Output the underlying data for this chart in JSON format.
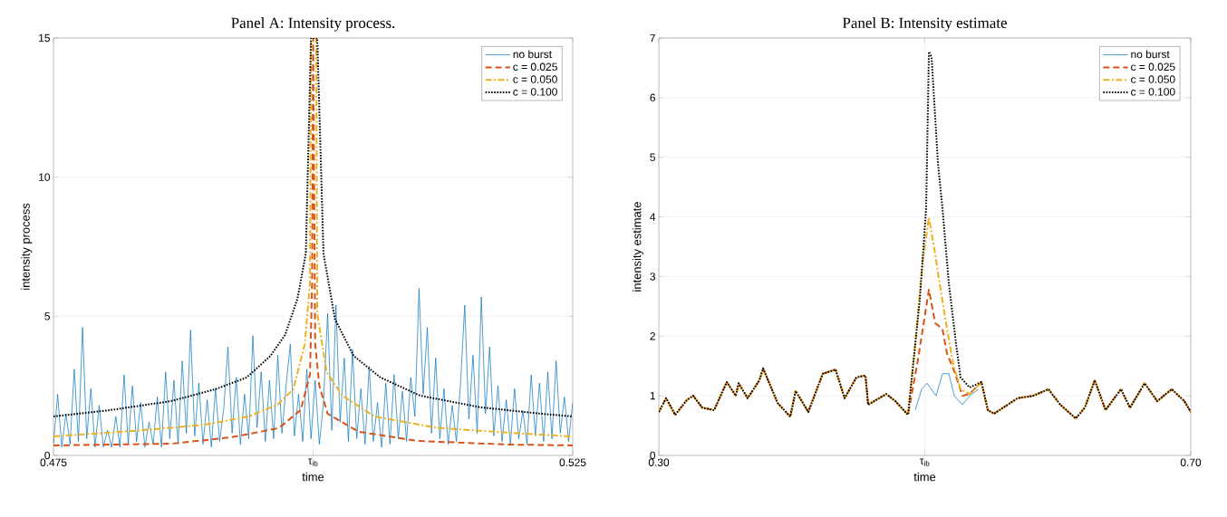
{
  "chart_data": [
    {
      "type": "line",
      "title": "Panel A: Intensity process.",
      "xlabel": "time",
      "ylabel": "intensity process",
      "xlim": [
        0.475,
        0.525
      ],
      "ylim": [
        0,
        15
      ],
      "xticks": [
        0.475,
        {
          "value": 0.5,
          "label": "τ$_{ib}$"
        },
        0.525
      ],
      "yticks": [
        0,
        5,
        10,
        15
      ],
      "grid": true,
      "legend": "top right",
      "series": [
        {
          "name": "no burst",
          "color": "#0072bd",
          "line_style": "solid",
          "x": [
            0.475,
            0.4754,
            0.4758,
            0.4762,
            0.4766,
            0.477,
            0.4774,
            0.4778,
            0.4782,
            0.4786,
            0.479,
            0.4794,
            0.4798,
            0.4802,
            0.4806,
            0.481,
            0.4814,
            0.4818,
            0.4822,
            0.4826,
            0.483,
            0.4834,
            0.4838,
            0.4842,
            0.4846,
            0.485,
            0.4854,
            0.4858,
            0.4862,
            0.4866,
            0.487,
            0.4874,
            0.4878,
            0.4882,
            0.4886,
            0.489,
            0.4894,
            0.4898,
            0.4902,
            0.4906,
            0.491,
            0.4914,
            0.4918,
            0.4922,
            0.4926,
            0.493,
            0.4934,
            0.4938,
            0.4942,
            0.4946,
            0.495,
            0.4954,
            0.4958,
            0.4962,
            0.4966,
            0.497,
            0.4974,
            0.4978,
            0.4982,
            0.4986,
            0.499,
            0.4994,
            0.4998,
            0.5002,
            0.5006,
            0.501,
            0.5014,
            0.5018,
            0.5022,
            0.5026,
            0.503,
            0.5034,
            0.5038,
            0.5042,
            0.5046,
            0.505,
            0.5054,
            0.5058,
            0.5062,
            0.5066,
            0.507,
            0.5074,
            0.5078,
            0.5082,
            0.5086,
            0.509,
            0.5094,
            0.5098,
            0.5102,
            0.5106,
            0.511,
            0.5114,
            0.5118,
            0.5122,
            0.5126,
            0.513,
            0.5134,
            0.5138,
            0.5142,
            0.5146,
            0.515,
            0.5154,
            0.5158,
            0.5162,
            0.5166,
            0.517,
            0.5174,
            0.5178,
            0.5182,
            0.5186,
            0.519,
            0.5194,
            0.5198,
            0.5202,
            0.5206,
            0.521,
            0.5214,
            0.5218,
            0.5222,
            0.5226,
            0.523,
            0.5234,
            0.5238,
            0.5242,
            0.5246,
            0.525
          ],
          "values": [
            0.4,
            2.2,
            0.3,
            1.5,
            0.4,
            3.1,
            0.5,
            4.6,
            0.6,
            2.4,
            0.3,
            1.8,
            0.3,
            0.9,
            0.3,
            1.4,
            0.3,
            2.9,
            0.4,
            2.5,
            0.5,
            1.9,
            0.3,
            1.2,
            0.4,
            2.1,
            0.3,
            3.0,
            0.6,
            2.7,
            0.4,
            3.4,
            0.8,
            4.5,
            0.7,
            2.6,
            0.4,
            2.0,
            0.3,
            2.4,
            0.5,
            1.7,
            3.9,
            0.8,
            2.8,
            0.4,
            2.2,
            0.6,
            4.3,
            1.0,
            3.0,
            0.5,
            2.7,
            0.6,
            3.6,
            0.8,
            2.5,
            4.0,
            0.7,
            2.2,
            0.5,
            3.1,
            0.6,
            2.7,
            0.4,
            1.9,
            5.1,
            0.9,
            5.4,
            1.2,
            3.5,
            0.5,
            3.8,
            0.6,
            2.4,
            0.4,
            3.2,
            0.5,
            1.9,
            0.3,
            2.6,
            0.4,
            2.9,
            0.6,
            2.3,
            0.5,
            2.8,
            1.4,
            6.0,
            2.2,
            4.6,
            0.8,
            3.5,
            0.6,
            2.4,
            0.4,
            1.8,
            0.5,
            2.6,
            5.4,
            1.3,
            3.6,
            0.8,
            5.7,
            1.5,
            3.9,
            0.7,
            2.5,
            0.5,
            2.0,
            0.4,
            2.4,
            0.6,
            1.6,
            0.4,
            2.9,
            0.7,
            2.6,
            0.5,
            3.0,
            0.6,
            3.4,
            0.8,
            2.1,
            0.5,
            1.9
          ]
        },
        {
          "name": "c = 0.025",
          "color": "#d95319",
          "line_style": "dashed",
          "x": [
            0.475,
            0.4863,
            0.4921,
            0.4967,
            0.4988,
            0.4997,
            0.4999,
            0.5,
            0.5002,
            0.5006,
            0.5014,
            0.5044,
            0.5101,
            0.5188,
            0.525
          ],
          "values": [
            0.36,
            0.42,
            0.65,
            0.98,
            1.63,
            2.9,
            6.2,
            15,
            4.0,
            2.5,
            1.5,
            0.85,
            0.52,
            0.39,
            0.36
          ]
        },
        {
          "name": "c = 0.050",
          "color": "#edb120",
          "line_style": "dashdot",
          "x": [
            0.475,
            0.4837,
            0.4895,
            0.4938,
            0.4966,
            0.4981,
            0.4992,
            0.4997,
            0.4998,
            0.5003,
            0.5004,
            0.5013,
            0.5028,
            0.5059,
            0.5118,
            0.519,
            0.525
          ],
          "values": [
            0.68,
            0.91,
            1.1,
            1.4,
            1.83,
            2.38,
            4.0,
            6.2,
            15,
            15,
            5.1,
            3.0,
            2.15,
            1.4,
            1.0,
            0.81,
            0.68
          ]
        },
        {
          "name": "c = 0.100",
          "color": "#000000",
          "line_style": "dotted",
          "x": [
            0.475,
            0.4805,
            0.4863,
            0.4906,
            0.4936,
            0.4959,
            0.4973,
            0.4985,
            0.4993,
            0.4998,
            0.5004,
            0.501,
            0.5021,
            0.5039,
            0.5065,
            0.5103,
            0.5161,
            0.5219,
            0.525
          ],
          "values": [
            1.4,
            1.63,
            1.95,
            2.38,
            2.8,
            3.58,
            4.33,
            5.64,
            7.26,
            15,
            15,
            7.26,
            4.9,
            3.58,
            2.8,
            2.15,
            1.73,
            1.5,
            1.4
          ]
        }
      ]
    },
    {
      "type": "line",
      "title": "Panel B: Intensity estimate",
      "xlabel": "time",
      "ylabel": "intensity estimate",
      "xlim": [
        0.3,
        0.7
      ],
      "ylim": [
        0,
        7
      ],
      "xticks": [
        {
          "value": 0.3,
          "label": "0.30"
        },
        {
          "value": 0.5,
          "label": "τ$_{ib}$"
        },
        {
          "value": 0.7,
          "label": "0.70"
        }
      ],
      "yticks": [
        0,
        1,
        2,
        3,
        4,
        5,
        6,
        7
      ],
      "grid": true,
      "legend": "top right",
      "series": [
        {
          "name": "no burst",
          "color": "#0072bd",
          "line_style": "solid",
          "x": [
            0.4928,
            0.4976,
            0.5017,
            0.5085,
            0.5133,
            0.5181,
            0.5222,
            0.5283,
            0.5337,
            0.5405
          ],
          "values": [
            0.76,
            1.11,
            1.21,
            1.0,
            1.37,
            1.37,
            1.0,
            0.85,
            1.0,
            1.11
          ]
        },
        {
          "name": "c = 0.025",
          "color": "#d95319",
          "line_style": "dashed",
          "x": [
            0.3,
            0.3055,
            0.3123,
            0.3211,
            0.3259,
            0.3327,
            0.3416,
            0.3511,
            0.3579,
            0.36,
            0.3668,
            0.3756,
            0.3784,
            0.3893,
            0.3988,
            0.4029,
            0.4124,
            0.4233,
            0.4329,
            0.4397,
            0.4486,
            0.4554,
            0.4574,
            0.471,
            0.4779,
            0.4874,
            0.4949,
            0.5031,
            0.5078,
            0.5133,
            0.5167,
            0.5222,
            0.5283,
            0.5337,
            0.5426,
            0.5474,
            0.5521,
            0.5698,
            0.5814,
            0.593,
            0.6019,
            0.6135,
            0.6203,
            0.6278,
            0.6359,
            0.6475,
            0.6543,
            0.6653,
            0.6748,
            0.6857,
            0.6952,
            0.7
          ],
          "values": [
            0.73,
            0.96,
            0.68,
            0.93,
            1.0,
            0.8,
            0.76,
            1.23,
            1.0,
            1.21,
            0.96,
            1.26,
            1.46,
            0.88,
            0.65,
            1.08,
            0.73,
            1.37,
            1.44,
            0.96,
            1.31,
            1.34,
            0.85,
            1.03,
            0.91,
            0.68,
            1.61,
            2.78,
            2.22,
            2.12,
            1.71,
            1.41,
            1.0,
            1.03,
            1.23,
            0.76,
            0.7,
            0.96,
            1.0,
            1.11,
            0.85,
            0.62,
            0.8,
            1.26,
            0.76,
            1.11,
            0.8,
            1.21,
            0.91,
            1.11,
            0.91,
            0.73
          ]
        },
        {
          "name": "c = 0.050",
          "color": "#edb120",
          "line_style": "dashdot",
          "x": [
            0.3,
            0.3055,
            0.3123,
            0.3211,
            0.3259,
            0.3327,
            0.3416,
            0.3511,
            0.3579,
            0.36,
            0.3668,
            0.3756,
            0.3784,
            0.3893,
            0.3988,
            0.4029,
            0.4124,
            0.4233,
            0.4329,
            0.4397,
            0.4486,
            0.4554,
            0.4574,
            0.471,
            0.4779,
            0.4874,
            0.4928,
            0.4983,
            0.5031,
            0.5078,
            0.5112,
            0.5167,
            0.5215,
            0.5269,
            0.5337,
            0.5426,
            0.5474,
            0.5521,
            0.5698,
            0.5814,
            0.593,
            0.6019,
            0.6135,
            0.6203,
            0.6278,
            0.6359,
            0.6475,
            0.6543,
            0.6653,
            0.6748,
            0.6857,
            0.6952,
            0.7
          ],
          "values": [
            0.73,
            0.96,
            0.68,
            0.93,
            1.0,
            0.8,
            0.76,
            1.23,
            1.0,
            1.21,
            0.96,
            1.26,
            1.46,
            0.88,
            0.65,
            1.08,
            0.73,
            1.37,
            1.44,
            0.96,
            1.31,
            1.34,
            0.85,
            1.03,
            0.91,
            0.68,
            1.87,
            3.23,
            3.99,
            3.38,
            2.88,
            2.12,
            1.52,
            1.11,
            1.03,
            1.23,
            0.76,
            0.7,
            0.96,
            1.0,
            1.11,
            0.85,
            0.62,
            0.8,
            1.26,
            0.76,
            1.11,
            0.8,
            1.21,
            0.91,
            1.11,
            0.91,
            0.73
          ]
        },
        {
          "name": "c = 0.100",
          "color": "#000000",
          "line_style": "dotted",
          "x": [
            0.3,
            0.3055,
            0.3123,
            0.3211,
            0.3259,
            0.3327,
            0.3416,
            0.3511,
            0.3579,
            0.36,
            0.3668,
            0.3756,
            0.3784,
            0.3893,
            0.3988,
            0.4029,
            0.4124,
            0.4233,
            0.4329,
            0.4397,
            0.4486,
            0.4554,
            0.4574,
            0.471,
            0.4779,
            0.4874,
            0.4963,
            0.501,
            0.5031,
            0.5051,
            0.5099,
            0.5133,
            0.5181,
            0.5235,
            0.5269,
            0.5337,
            0.5426,
            0.5474,
            0.5521,
            0.5698,
            0.5814,
            0.593,
            0.6019,
            0.6135,
            0.6203,
            0.6278,
            0.6359,
            0.6475,
            0.6543,
            0.6653,
            0.6748,
            0.6857,
            0.6952,
            0.7
          ],
          "values": [
            0.73,
            0.96,
            0.68,
            0.93,
            1.0,
            0.8,
            0.76,
            1.23,
            1.0,
            1.21,
            0.96,
            1.26,
            1.46,
            0.88,
            0.65,
            1.08,
            0.73,
            1.37,
            1.44,
            0.96,
            1.31,
            1.34,
            0.85,
            1.03,
            0.91,
            0.68,
            2.63,
            4.14,
            6.77,
            6.68,
            4.9,
            4.14,
            2.88,
            1.87,
            1.31,
            1.14,
            1.23,
            0.76,
            0.7,
            0.96,
            1.0,
            1.11,
            0.85,
            0.62,
            0.8,
            1.26,
            0.76,
            1.11,
            0.8,
            1.21,
            0.91,
            1.11,
            0.91,
            0.73
          ]
        }
      ]
    }
  ]
}
